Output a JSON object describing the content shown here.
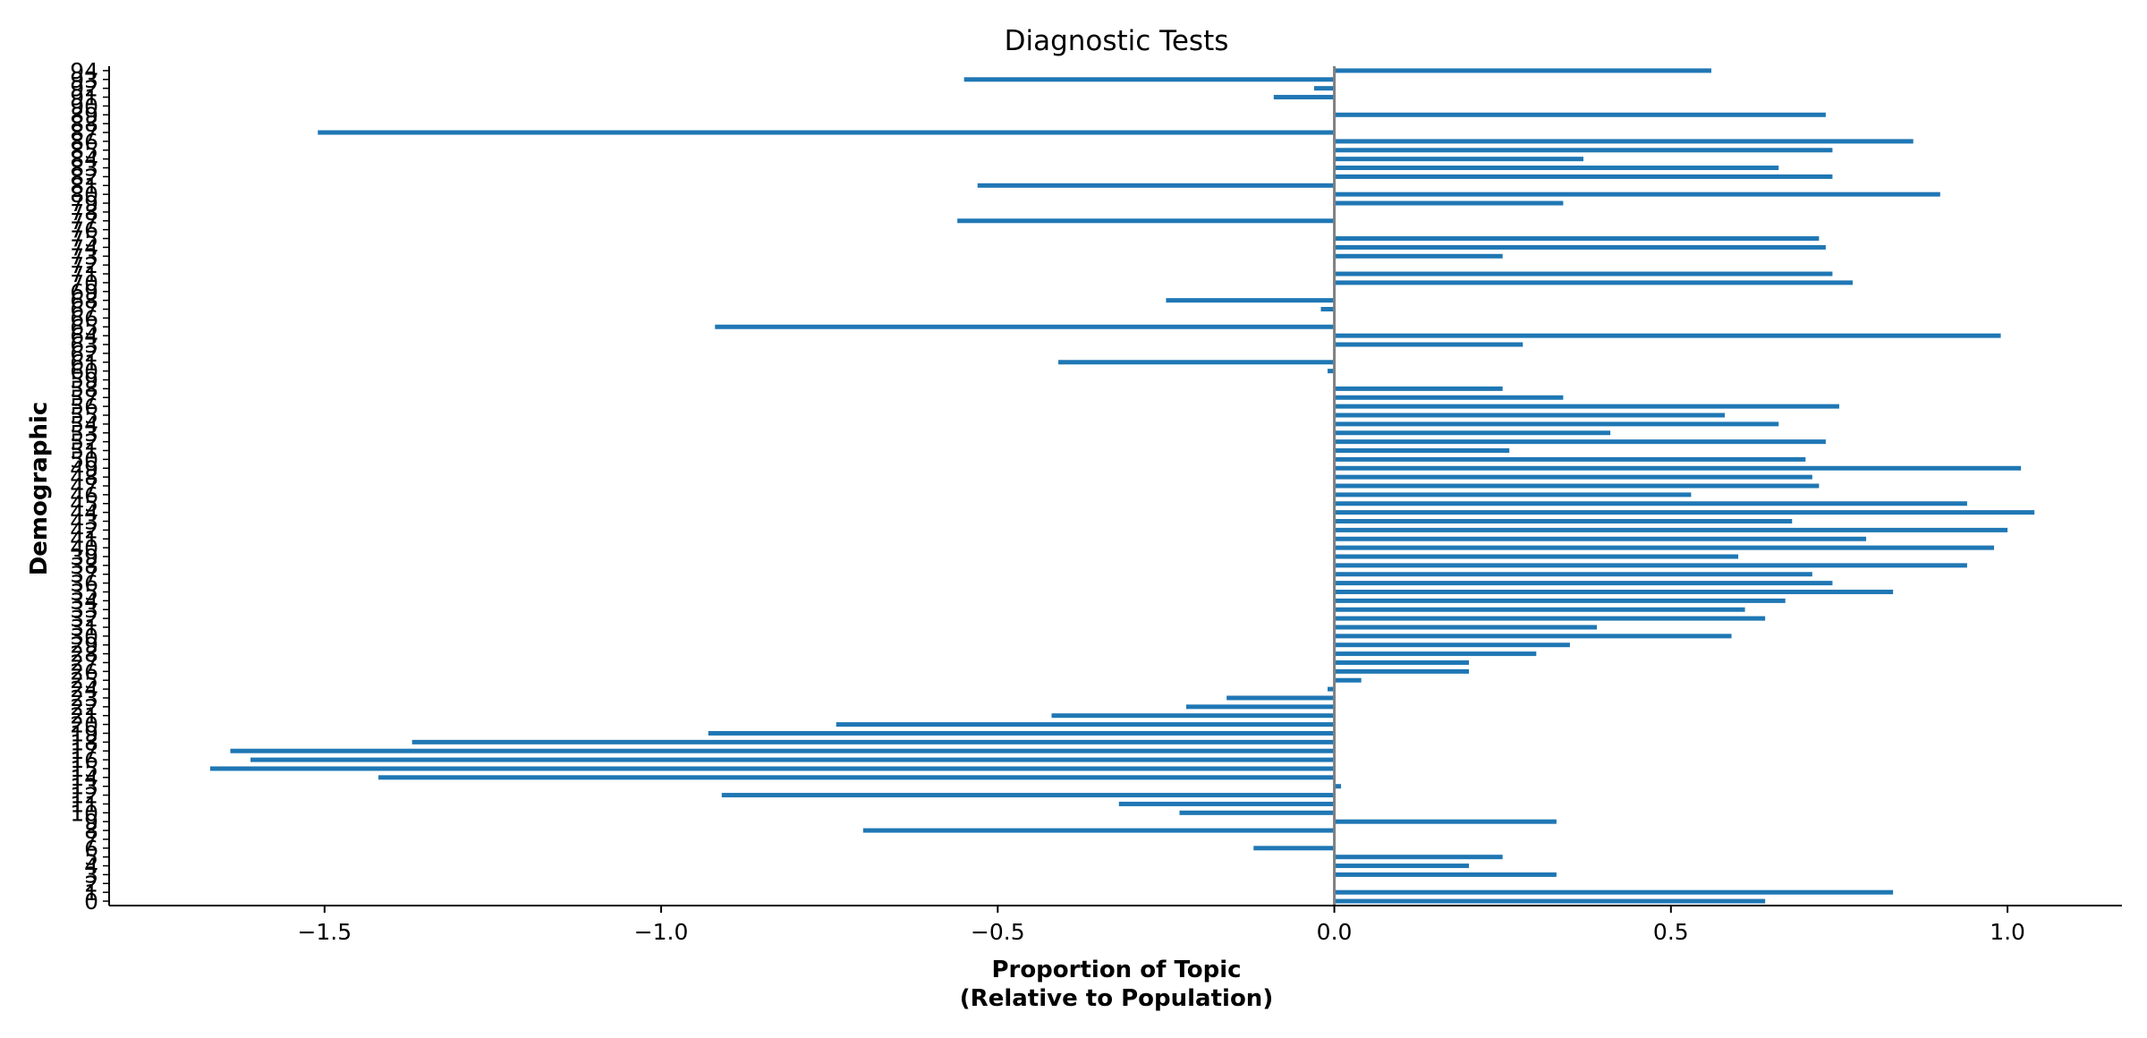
{
  "chart_data": {
    "type": "bar",
    "orientation": "horizontal",
    "title": "Diagnostic Tests",
    "xlabel_line1": "Proportion of Topic",
    "xlabel_line2": "(Relative to Population)",
    "ylabel": "Demographic",
    "xlim": [
      -1.82,
      1.17
    ],
    "ylim": [
      -0.5,
      94.5
    ],
    "xticks": [
      -1.5,
      -1.0,
      -0.5,
      0.0,
      0.5,
      1.0
    ],
    "xtick_labels": [
      "−1.5",
      "−1.0",
      "−0.5",
      "0.0",
      "0.5",
      "1.0"
    ],
    "grid": false,
    "bar_color": "#1f77b4",
    "zero_line_color": "#808080",
    "categories": [
      "0",
      "1",
      "2",
      "3",
      "4",
      "5",
      "6",
      "7",
      "8",
      "9",
      "10",
      "11",
      "12",
      "13",
      "14",
      "15",
      "16",
      "17",
      "18",
      "19",
      "20",
      "21",
      "22",
      "23",
      "24",
      "25",
      "26",
      "27",
      "28",
      "29",
      "30",
      "31",
      "32",
      "33",
      "34",
      "35",
      "36",
      "37",
      "38",
      "39",
      "40",
      "41",
      "42",
      "43",
      "44",
      "45",
      "46",
      "47",
      "48",
      "49",
      "50",
      "51",
      "52",
      "53",
      "54",
      "55",
      "56",
      "57",
      "58",
      "59",
      "60",
      "61",
      "62",
      "63",
      "64",
      "65",
      "66",
      "67",
      "68",
      "69",
      "70",
      "71",
      "72",
      "73",
      "74",
      "75",
      "76",
      "77",
      "78",
      "79",
      "80",
      "81",
      "82",
      "83",
      "84",
      "85",
      "86",
      "87",
      "88",
      "89",
      "90",
      "91",
      "92",
      "93",
      "94"
    ],
    "values": [
      0.64,
      0.83,
      0,
      0.33,
      0.2,
      0.25,
      -0.12,
      0,
      -0.7,
      0.33,
      -0.23,
      -0.32,
      -0.91,
      0.01,
      -1.42,
      -1.67,
      -1.61,
      -1.64,
      -1.37,
      -0.93,
      -0.74,
      -0.42,
      -0.22,
      -0.16,
      -0.01,
      0.04,
      0.2,
      0.2,
      0.3,
      0.35,
      0.59,
      0.39,
      0.64,
      0.61,
      0.67,
      0.83,
      0.74,
      0.71,
      0.94,
      0.6,
      0.98,
      0.79,
      1.0,
      0.68,
      1.04,
      0.94,
      0.53,
      0.72,
      0.71,
      1.02,
      0.7,
      0.26,
      0.73,
      0.41,
      0.66,
      0.58,
      0.75,
      0.34,
      0.25,
      0,
      -0.01,
      -0.41,
      0,
      0.28,
      0.99,
      -0.92,
      0,
      -0.02,
      -0.25,
      0,
      0.77,
      0.74,
      0,
      0.25,
      0.73,
      0.72,
      0,
      -0.56,
      0,
      0.34,
      0.9,
      -0.53,
      0.74,
      0.66,
      0.37,
      0.74,
      0.86,
      -1.51,
      0,
      0.73,
      0,
      -0.09,
      -0.03,
      -0.55,
      0.56
    ]
  }
}
